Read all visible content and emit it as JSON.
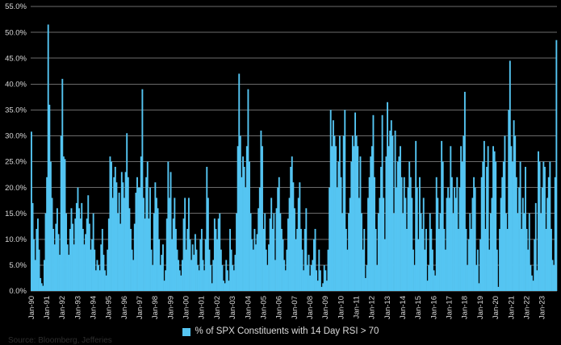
{
  "window": {
    "background": "#000000"
  },
  "legend": {
    "label": "% of SPX Constituents with 14 Day RSI > 70"
  },
  "source_note": "Source: Bloomberg, Jefferies",
  "colors": {
    "background": "#000000",
    "bar": "#55C5F2",
    "grid": "#6B6B6B",
    "tick_label": "#D9D9D9",
    "legend_text": "#DCDCDC",
    "source_text": "#2E2E2E"
  },
  "chart_data": {
    "type": "bar",
    "title": "",
    "xlabel": "",
    "ylabel": "",
    "ylim": [
      0,
      55
    ],
    "y_tick_step_pct": 5,
    "grid": true,
    "legend_position": "bottom-center",
    "y_tick_labels": [
      "0.0%",
      "5.0%",
      "10.0%",
      "15.0%",
      "20.0%",
      "25.0%",
      "30.0%",
      "35.0%",
      "40.0%",
      "45.0%",
      "50.0%",
      "55.0%"
    ],
    "x_tick_labels": [
      "Jan-90",
      "Jan-91",
      "Jan-92",
      "Jan-93",
      "Jan-94",
      "Jan-95",
      "Jan-96",
      "Jan-97",
      "Jan-98",
      "Jan-99",
      "Jan-00",
      "Jan-01",
      "Jan-02",
      "Jan-03",
      "Jan-04",
      "Jan-05",
      "Jan-06",
      "Jan-07",
      "Jan-08",
      "Jan-09",
      "Jan-10",
      "Jan-11",
      "Jan-12",
      "Jan-13",
      "Jan-14",
      "Jan-15",
      "Jan-16",
      "Jan-17",
      "Jan-18",
      "Jan-19",
      "Jan-20",
      "Jan-21",
      "Jan-22",
      "Jan-23"
    ],
    "series": [
      {
        "name": "% of SPX Constituents with 14 Day RSI > 70",
        "unit": "percent",
        "granularity": "monthly (values estimated from dense weekly plot)",
        "start": "Jan-1990",
        "end": "Dec-2023",
        "values": [
          30.8,
          17,
          10,
          6,
          12,
          14,
          8,
          2.5,
          1.5,
          1,
          6,
          15,
          22,
          51.5,
          36,
          25,
          18,
          12,
          9,
          13,
          16,
          11,
          7,
          30,
          41,
          26,
          25.5,
          15,
          9,
          7,
          12,
          16,
          13,
          9,
          14,
          17,
          20,
          16,
          14,
          17,
          12,
          9,
          11,
          14,
          18.5,
          13,
          8,
          10,
          15,
          8,
          4,
          6,
          5,
          4,
          9,
          12,
          7,
          4,
          3,
          8,
          14,
          26,
          25,
          18,
          22,
          24,
          21,
          15,
          19,
          13,
          23,
          21,
          18,
          23,
          30.5,
          22,
          16,
          12,
          8,
          6,
          13,
          19,
          22,
          20,
          20,
          26,
          39,
          18,
          14,
          22,
          25,
          14,
          20,
          8,
          5,
          15,
          21,
          18,
          16,
          10,
          5,
          7,
          9,
          2,
          4,
          14,
          25,
          18,
          23,
          10,
          14,
          18,
          12,
          8,
          6,
          4,
          3,
          6,
          14,
          18,
          8,
          12,
          18,
          10,
          6,
          9,
          7,
          11,
          8,
          5,
          4,
          10,
          12,
          6,
          4,
          10,
          24,
          18,
          8,
          5,
          1.5,
          6,
          14,
          12,
          10,
          14,
          15,
          8,
          5,
          2,
          1.5,
          6,
          4,
          2,
          12,
          8,
          5,
          4,
          7,
          15,
          28,
          42,
          30,
          22,
          26,
          24,
          20,
          28,
          39,
          25,
          15,
          10,
          8,
          12,
          9,
          11,
          16,
          20,
          31,
          28,
          12,
          15,
          8,
          5,
          9,
          14,
          18,
          12,
          15,
          6,
          16,
          20,
          22,
          15,
          12,
          10,
          6,
          4,
          8,
          14,
          18,
          24,
          26,
          21,
          16,
          10,
          12,
          18,
          21,
          12,
          8,
          4,
          12,
          16,
          5,
          7,
          3,
          5,
          6,
          10,
          12,
          4,
          2,
          8,
          4,
          0.8,
          1.5,
          5,
          4,
          2,
          8,
          20,
          35,
          28,
          33,
          30,
          28,
          20,
          25,
          30,
          22,
          15,
          30,
          35,
          12,
          8,
          15,
          18,
          25,
          30,
          28,
          34.5,
          30,
          28,
          18,
          26,
          15,
          8,
          12,
          2.5,
          5,
          18,
          22,
          26,
          28,
          34,
          22,
          12,
          5,
          15,
          18,
          24,
          34,
          18,
          10,
          26,
          36.5,
          28,
          31,
          33,
          30,
          15,
          31,
          20,
          25,
          26,
          28,
          22,
          15,
          22,
          18,
          12,
          20,
          25,
          22,
          18,
          8,
          5,
          29,
          20,
          10,
          22,
          15,
          12,
          18,
          8,
          12,
          2,
          5,
          15,
          12,
          8,
          4,
          3,
          22,
          18,
          12,
          15,
          29,
          25,
          12,
          8,
          18,
          20,
          18,
          28,
          22,
          15,
          20,
          18,
          22,
          12,
          20,
          28,
          25,
          30,
          38.5,
          12,
          5,
          10,
          15,
          12,
          18,
          22,
          20,
          5,
          8,
          1.5,
          10,
          22,
          25,
          29,
          12,
          24,
          28,
          8,
          15,
          18,
          28,
          27,
          25,
          8,
          0.8,
          12,
          18,
          22,
          25,
          30,
          15,
          12,
          35,
          44.5,
          28,
          25,
          33,
          30,
          22,
          15,
          20,
          25,
          12,
          18,
          15,
          24,
          12,
          8,
          15,
          5,
          3,
          2,
          10,
          17,
          4,
          27,
          25,
          15,
          20,
          25,
          24,
          12,
          18,
          22,
          25,
          12,
          6,
          5,
          22,
          48.5
        ]
      }
    ]
  }
}
